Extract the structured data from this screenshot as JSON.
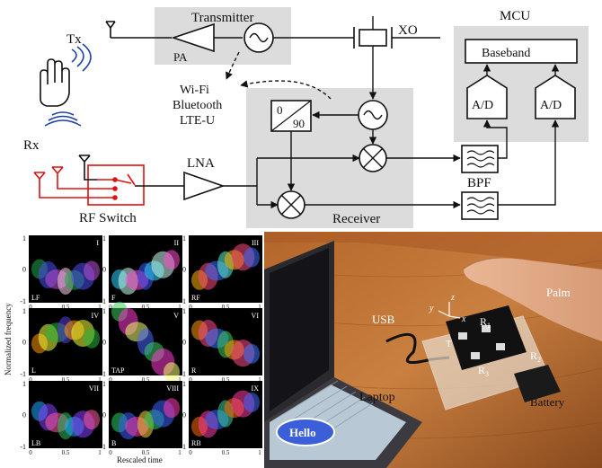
{
  "block_diagram": {
    "transmitter": "Transmitter",
    "pa": "PA",
    "xo": "XO",
    "mcu": "MCU",
    "baseband": "Baseband",
    "adc_left": "A/D",
    "adc_right": "A/D",
    "tx": "Tx",
    "rx": "Rx",
    "interference": [
      "Wi-Fi",
      "Bluetooth",
      "LTE-U"
    ],
    "phase_shift_top": "0",
    "phase_shift_bottom": "90",
    "lna": "LNA",
    "bpf": "BPF",
    "rf_switch": "RF Switch",
    "receiver": "Receiver"
  },
  "spectrograms": {
    "y_axis_label": "Normalized frequency",
    "x_axis_label": "Rescaled time",
    "y_ticks": [
      "1",
      "0",
      "-1"
    ],
    "x_ticks": [
      "0",
      "0.5",
      "1"
    ],
    "panels": [
      {
        "numeral": "I",
        "gesture": "LF"
      },
      {
        "numeral": "II",
        "gesture": "F"
      },
      {
        "numeral": "III",
        "gesture": "RF"
      },
      {
        "numeral": "IV",
        "gesture": "L"
      },
      {
        "numeral": "V",
        "gesture": "TAP"
      },
      {
        "numeral": "VI",
        "gesture": "R"
      },
      {
        "numeral": "VII",
        "gesture": "LB"
      },
      {
        "numeral": "VIII",
        "gesture": "B"
      },
      {
        "numeral": "IX",
        "gesture": "RB"
      }
    ]
  },
  "photo": {
    "usb": "USB",
    "palm": "Palm",
    "laptop": "Laptop",
    "battery": "Battery",
    "t": "T",
    "r1": "R",
    "r1_sub": "1",
    "r2": "R",
    "r2_sub": "2",
    "r3": "R",
    "r3_sub": "3",
    "axis_x": "x",
    "axis_y": "y",
    "axis_z": "z",
    "sticker": "Hello"
  }
}
